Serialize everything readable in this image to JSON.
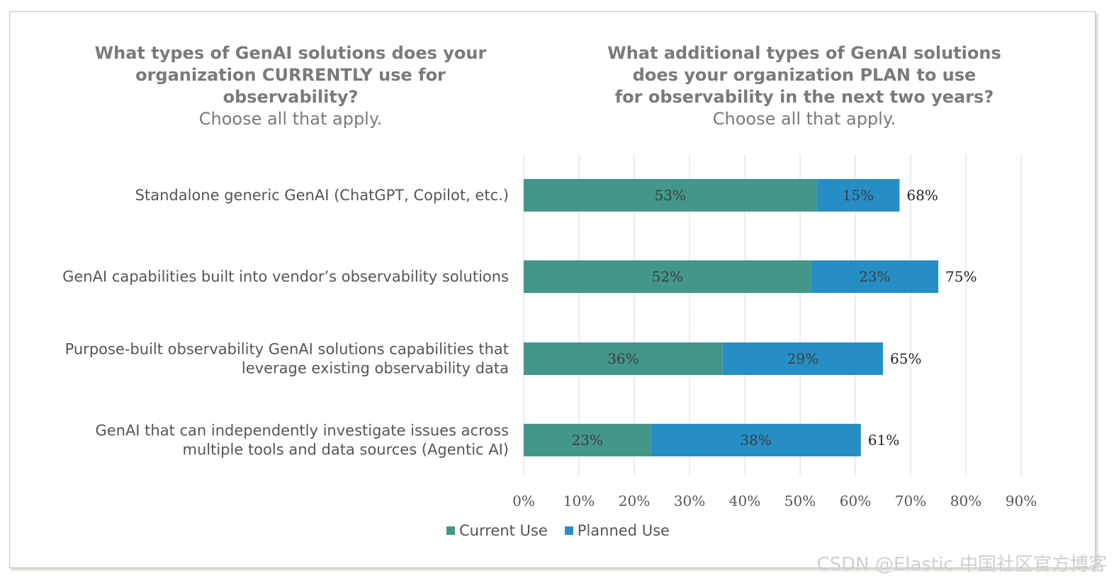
{
  "headers": {
    "left": {
      "question": [
        "What types of GenAI solutions does your",
        "organization CURRENTLY use for observability?"
      ],
      "note": "Choose all that apply."
    },
    "right": {
      "question": [
        "What additional types of GenAI solutions",
        "does your organization PLAN to use",
        "for observability in the next two years?"
      ],
      "note": "Choose all that apply."
    }
  },
  "watermark": "CSDN @Elastic 中国社区官方博客",
  "chart_data": {
    "type": "bar",
    "orientation": "horizontal",
    "stacked": true,
    "categories": [
      [
        "Standalone generic GenAI (ChatGPT, Copilot, etc.)"
      ],
      [
        "GenAI capabilities built into vendor’s observability solutions"
      ],
      [
        "Purpose-built observability GenAI solutions capabilities that",
        "leverage existing observability data"
      ],
      [
        "GenAI that can independently investigate issues across",
        "multiple tools and data sources (Agentic AI)"
      ]
    ],
    "series": [
      {
        "name": "Current Use",
        "color": "#43978a",
        "values": [
          53,
          52,
          36,
          23
        ],
        "labels": [
          "53%",
          "52%",
          "36%",
          "23%"
        ]
      },
      {
        "name": "Planned Use",
        "color": "#268ec4",
        "values": [
          15,
          23,
          29,
          38
        ],
        "labels": [
          "15%",
          "23%",
          "29%",
          "38%"
        ]
      }
    ],
    "totals": [
      "68%",
      "75%",
      "65%",
      "61%"
    ],
    "xlim": [
      0,
      90
    ],
    "xticks": [
      "0%",
      "10%",
      "20%",
      "30%",
      "40%",
      "50%",
      "60%",
      "70%",
      "80%",
      "90%"
    ],
    "grid": true,
    "legend": "bottom"
  }
}
